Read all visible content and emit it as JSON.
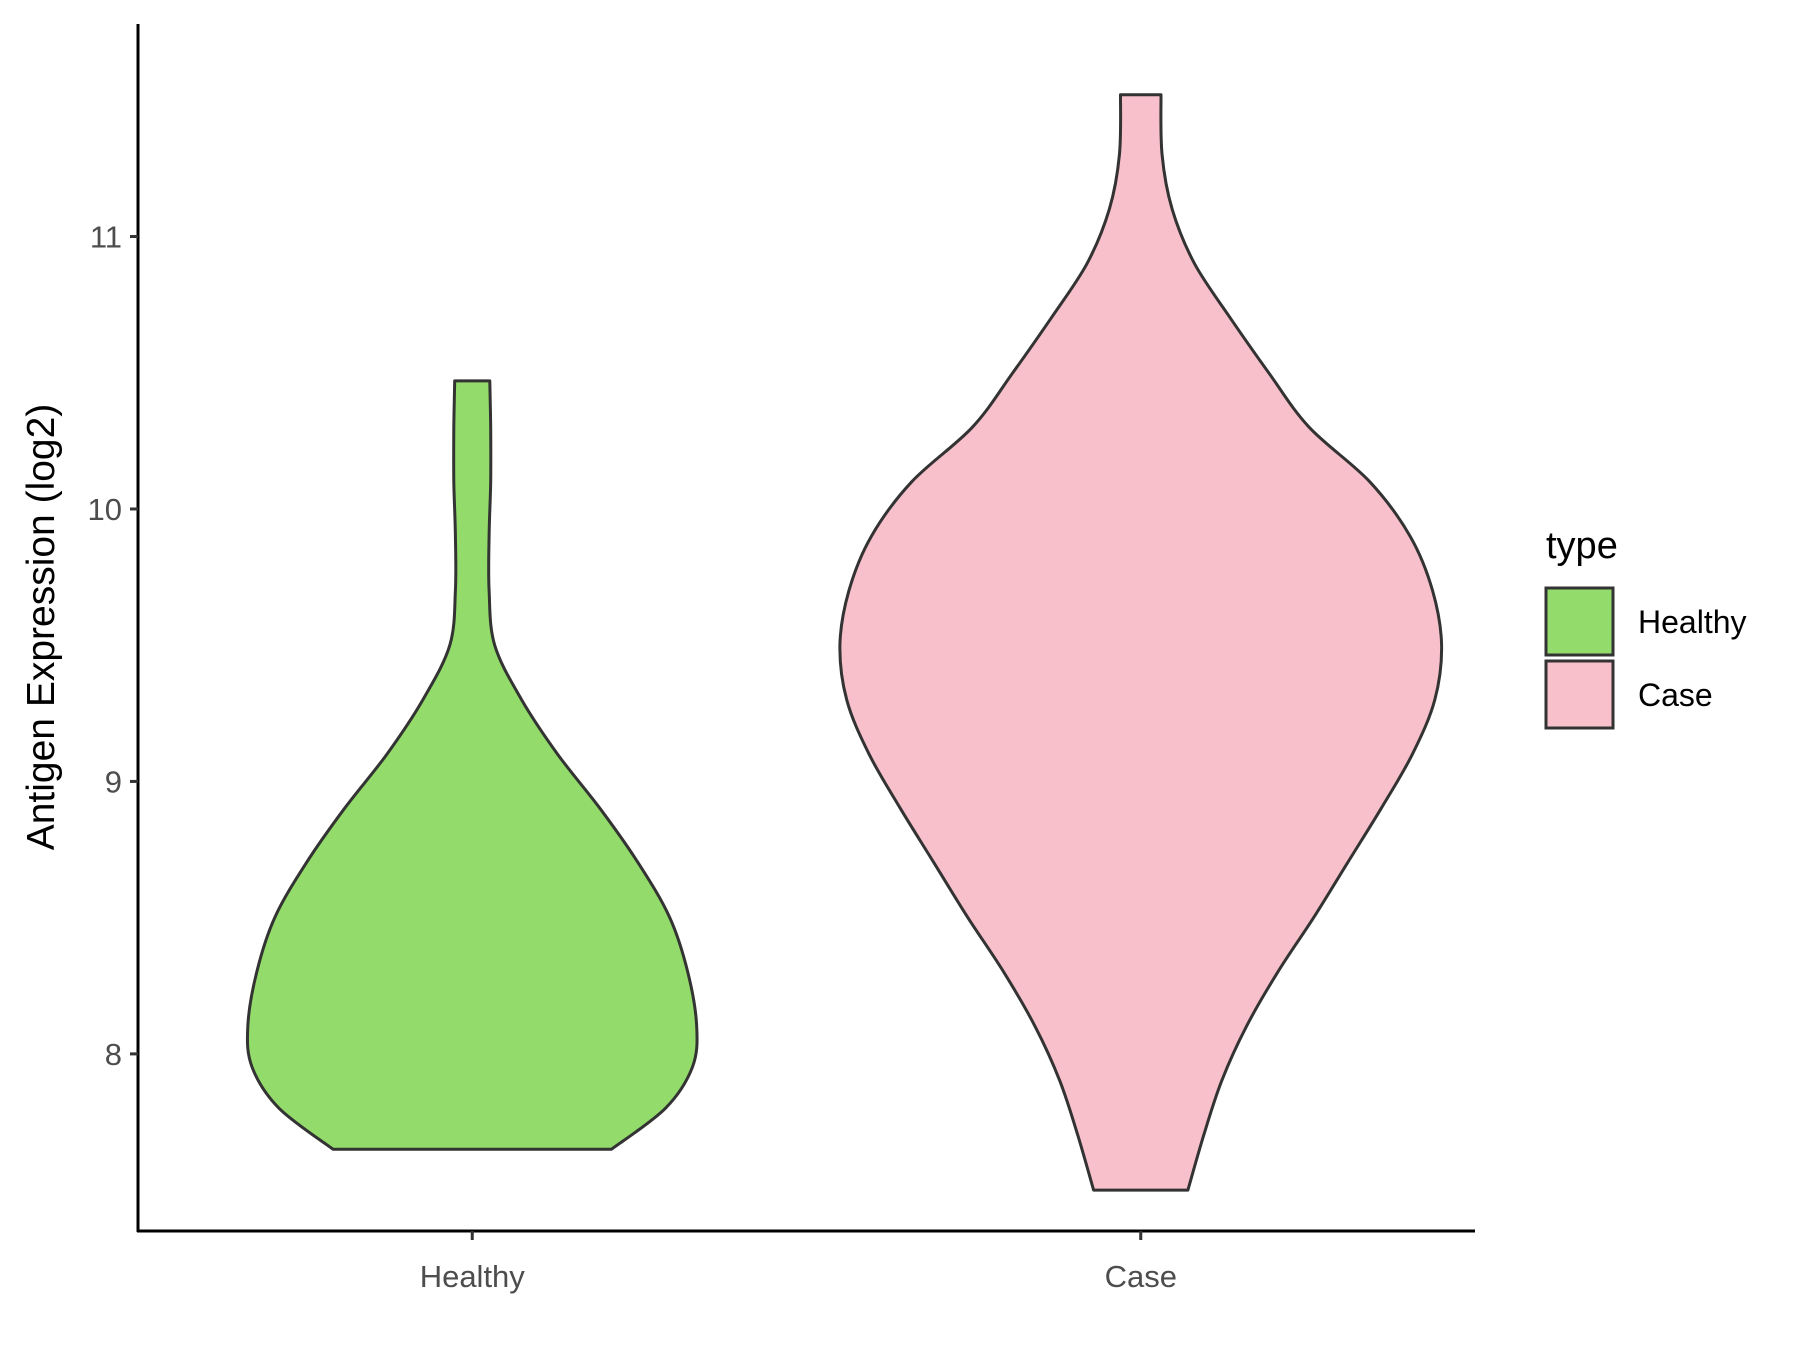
{
  "chart_data": {
    "type": "violin",
    "ylabel": "Antigen Expression (log2)",
    "xlabel": "",
    "categories": [
      "Healthy",
      "Case"
    ],
    "yticks": [
      "8",
      "9",
      "10",
      "11"
    ],
    "ylim": [
      7.35,
      11.78
    ],
    "grid": false,
    "legend": {
      "title": "type",
      "position": "right",
      "entries": [
        "Healthy",
        "Case"
      ]
    },
    "colors": {
      "Healthy": "#93dc6b",
      "Case": "#f8c0cb",
      "outline": "#333333"
    },
    "series": [
      {
        "name": "Healthy",
        "min": 7.65,
        "max": 10.47,
        "density_profile": [
          [
            7.65,
            0.62
          ],
          [
            7.8,
            0.86
          ],
          [
            7.95,
            0.98
          ],
          [
            8.1,
            1.0
          ],
          [
            8.3,
            0.96
          ],
          [
            8.5,
            0.88
          ],
          [
            8.7,
            0.74
          ],
          [
            8.9,
            0.57
          ],
          [
            9.1,
            0.38
          ],
          [
            9.3,
            0.22
          ],
          [
            9.5,
            0.1
          ],
          [
            9.7,
            0.075
          ],
          [
            9.9,
            0.075
          ],
          [
            10.1,
            0.082
          ],
          [
            10.3,
            0.082
          ],
          [
            10.47,
            0.078
          ]
        ]
      },
      {
        "name": "Case",
        "min": 7.5,
        "max": 11.52,
        "density_profile": [
          [
            7.5,
            0.21
          ],
          [
            7.7,
            0.28
          ],
          [
            7.9,
            0.36
          ],
          [
            8.1,
            0.47
          ],
          [
            8.3,
            0.61
          ],
          [
            8.5,
            0.77
          ],
          [
            8.7,
            0.92
          ],
          [
            8.9,
            1.07
          ],
          [
            9.1,
            1.21
          ],
          [
            9.3,
            1.31
          ],
          [
            9.5,
            1.34
          ],
          [
            9.7,
            1.3
          ],
          [
            9.9,
            1.2
          ],
          [
            10.1,
            1.02
          ],
          [
            10.3,
            0.75
          ],
          [
            10.5,
            0.57
          ],
          [
            10.7,
            0.4
          ],
          [
            10.9,
            0.24
          ],
          [
            11.1,
            0.14
          ],
          [
            11.3,
            0.095
          ],
          [
            11.52,
            0.09
          ]
        ]
      }
    ]
  }
}
